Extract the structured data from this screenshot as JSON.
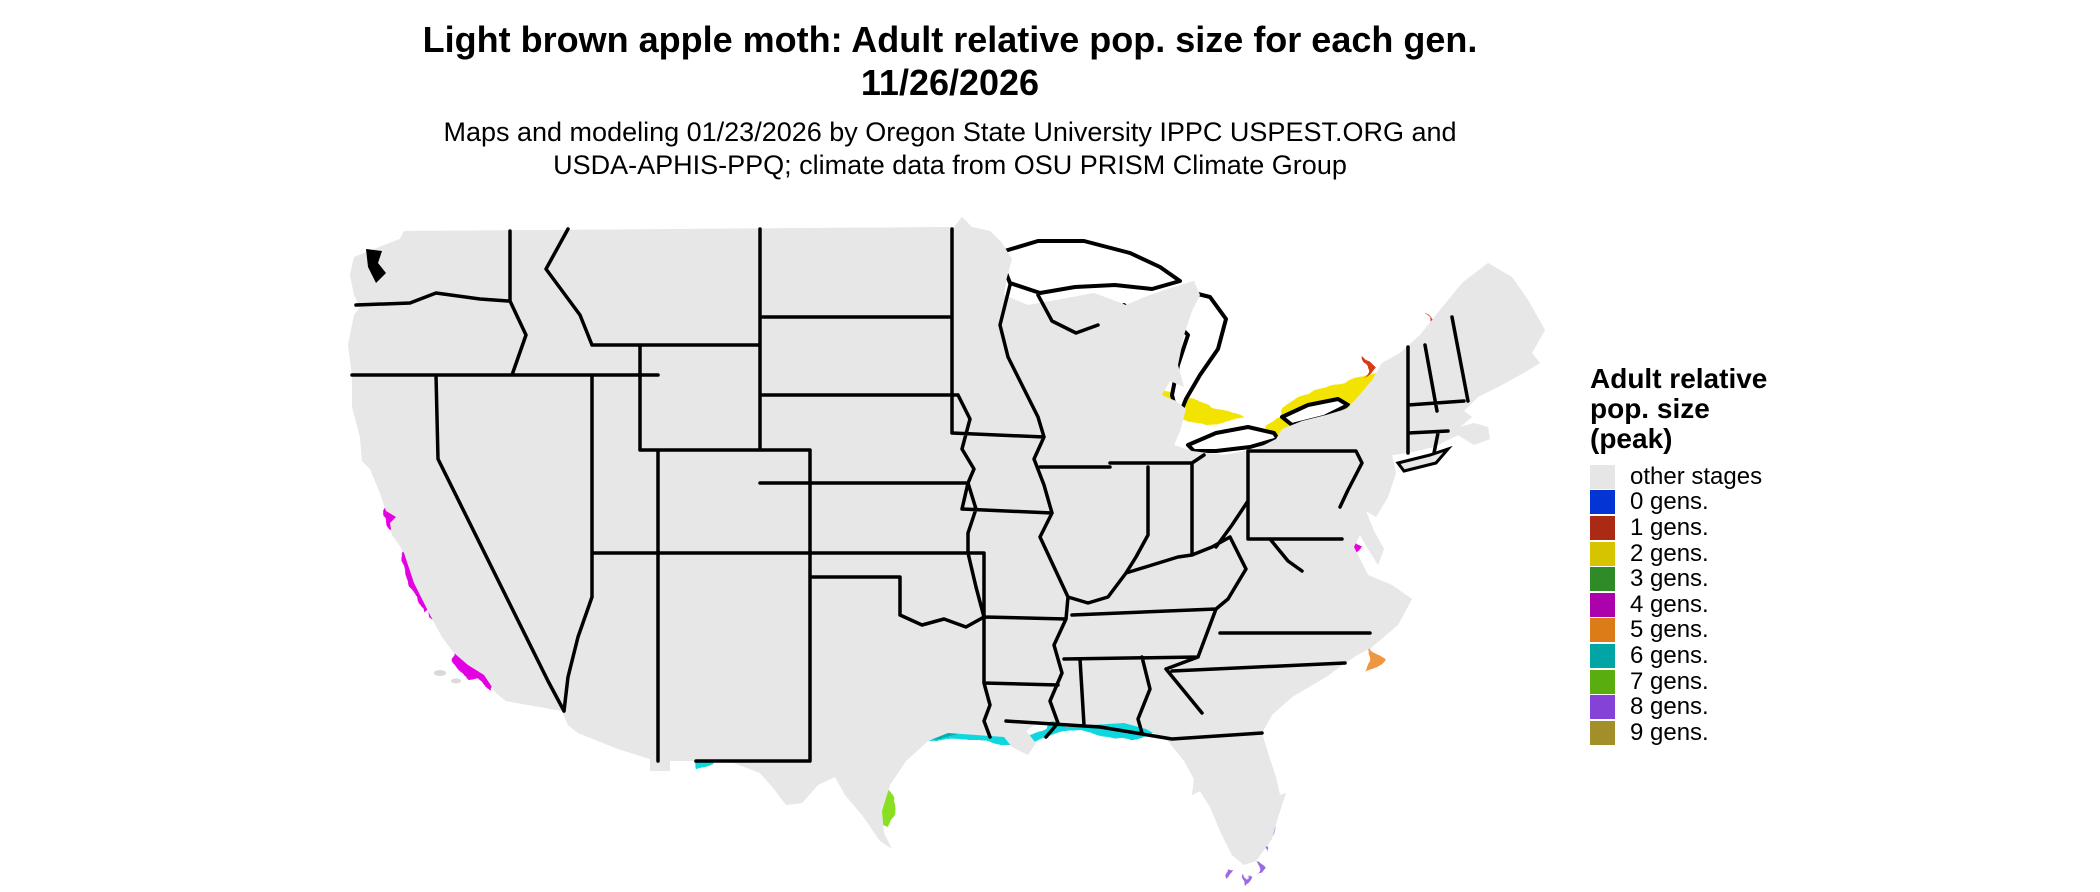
{
  "figure": {
    "title_line1": "Light brown apple moth: Adult relative pop. size for each gen.",
    "title_line2": "11/26/2026",
    "subtitle_line1": "Maps and modeling 01/23/2026 by Oregon State University IPPC USPEST.ORG and",
    "subtitle_line2": "USDA-APHIS-PPQ; climate data from OSU PRISM Climate Group"
  },
  "legend": {
    "title_lines": [
      "Adult relative",
      "pop. size",
      "(peak)"
    ],
    "items": [
      {
        "id": "other",
        "label": "other stages",
        "color": "#e6e6e6"
      },
      {
        "id": "g0",
        "label": "0 gens.",
        "color": "#0534d4"
      },
      {
        "id": "g1",
        "label": "1 gens.",
        "color": "#aa2a16"
      },
      {
        "id": "g2",
        "label": "2 gens.",
        "color": "#d6c400"
      },
      {
        "id": "g3",
        "label": "3 gens.",
        "color": "#2e8b28"
      },
      {
        "id": "g4",
        "label": "4 gens.",
        "color": "#ab02ab"
      },
      {
        "id": "g5",
        "label": "5 gens.",
        "color": "#dc7c18"
      },
      {
        "id": "g6",
        "label": "6 gens.",
        "color": "#02a5a5"
      },
      {
        "id": "g7",
        "label": "7 gens.",
        "color": "#5aad0e"
      },
      {
        "id": "g8",
        "label": "8 gens.",
        "color": "#8442d6"
      },
      {
        "id": "g9",
        "label": "9 gens.",
        "color": "#a28f2a"
      }
    ]
  },
  "map": {
    "region": "Contiguous United States",
    "land_color": "#e7e7e7",
    "water_color": "#ffffff",
    "border_color": "#000000",
    "shades": {
      "g0": "#0d55dd",
      "g1": "#d93a12",
      "g1_core": "#aa2a16",
      "g2": "#f2e400",
      "g2_core": "#c2ad00",
      "g3": "#6fcf6f",
      "g3_core": "#2e8b28",
      "g4": "#e303e3",
      "g4_core": "#ab02ab",
      "g5": "#f0953f",
      "g5_core": "#d2741c",
      "g6": "#0cd8e0",
      "g6_core": "#02a5a5",
      "g7": "#8adf20",
      "g8": "#9a6ae0",
      "island_gray": "#d9d9d9"
    }
  }
}
